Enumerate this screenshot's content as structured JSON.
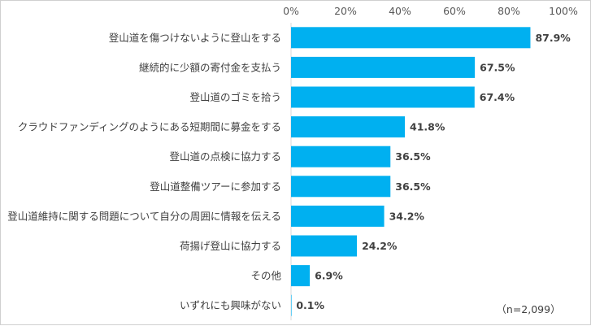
{
  "chart_data": {
    "type": "bar",
    "orientation": "horizontal",
    "categories": [
      "登山道を傷つけないように登山をする",
      "継続的に少額の寄付金を支払う",
      "登山道のゴミを拾う",
      "クラウドファンディングのようにある短期間に募金をする",
      "登山道の点検に協力する",
      "登山道整備ツアーに参加する",
      "登山道維持に関する問題について自分の周囲に情報を伝える",
      "荷揚げ登山に協力する",
      "その他",
      "いずれにも興味がない"
    ],
    "values": [
      87.9,
      67.5,
      67.4,
      41.8,
      36.5,
      36.5,
      34.2,
      24.2,
      6.9,
      0.1
    ],
    "value_labels": [
      "87.9%",
      "67.5%",
      "67.4%",
      "41.8%",
      "36.5%",
      "36.5%",
      "34.2%",
      "24.2%",
      "6.9%",
      "0.1%"
    ],
    "xlim": [
      0,
      100
    ],
    "x_ticks": [
      "0%",
      "20%",
      "40%",
      "60%",
      "80%",
      "100%"
    ],
    "x_axis_position": "top",
    "grid": false,
    "legend": "none",
    "bar_color": "#00B0F0",
    "note": "（n=2,099）"
  }
}
